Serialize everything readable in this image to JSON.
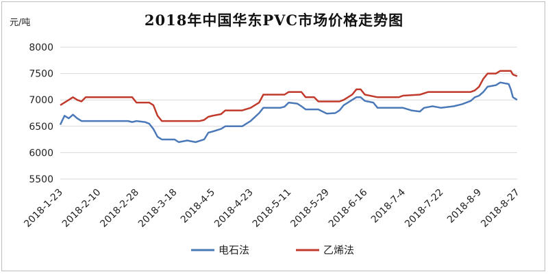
{
  "chart_data": {
    "type": "line",
    "title": "2018年中国华东PVC市场价格走势图",
    "unit": "元/吨",
    "ylim": [
      5500,
      8000
    ],
    "yticks": [
      5500,
      6000,
      6500,
      7000,
      7500,
      8000
    ],
    "xlim": [
      "2018-1-23",
      "2018-8-27"
    ],
    "xticks": [
      "2018-1-23",
      "2018-2-10",
      "2018-2-28",
      "2018-3-18",
      "2018-4-5",
      "2018-4-23",
      "2018-5-11",
      "2018-5-29",
      "2018-6-16",
      "2018-7-4",
      "2018-7-22",
      "2018-8-9",
      "2018-8-27"
    ],
    "grid": "horizontal",
    "legend_position": "bottom",
    "series": [
      {
        "name": "电石法",
        "color": "#4a78b8",
        "points": [
          [
            "2018-1-23",
            6530
          ],
          [
            "2018-1-25",
            6700
          ],
          [
            "2018-1-27",
            6650
          ],
          [
            "2018-1-29",
            6720
          ],
          [
            "2018-1-31",
            6650
          ],
          [
            "2018-2-2",
            6600
          ],
          [
            "2018-2-10",
            6600
          ],
          [
            "2018-2-18",
            6600
          ],
          [
            "2018-2-24",
            6600
          ],
          [
            "2018-2-26",
            6580
          ],
          [
            "2018-2-28",
            6600
          ],
          [
            "2018-3-4",
            6580
          ],
          [
            "2018-3-6",
            6550
          ],
          [
            "2018-3-8",
            6450
          ],
          [
            "2018-3-10",
            6300
          ],
          [
            "2018-3-12",
            6250
          ],
          [
            "2018-3-18",
            6250
          ],
          [
            "2018-3-20",
            6200
          ],
          [
            "2018-3-24",
            6230
          ],
          [
            "2018-3-28",
            6200
          ],
          [
            "2018-4-1",
            6250
          ],
          [
            "2018-4-3",
            6380
          ],
          [
            "2018-4-5",
            6400
          ],
          [
            "2018-4-9",
            6450
          ],
          [
            "2018-4-11",
            6500
          ],
          [
            "2018-4-19",
            6500
          ],
          [
            "2018-4-21",
            6550
          ],
          [
            "2018-4-23",
            6600
          ],
          [
            "2018-4-27",
            6750
          ],
          [
            "2018-4-29",
            6850
          ],
          [
            "2018-5-7",
            6850
          ],
          [
            "2018-5-9",
            6870
          ],
          [
            "2018-5-11",
            6950
          ],
          [
            "2018-5-15",
            6930
          ],
          [
            "2018-5-17",
            6880
          ],
          [
            "2018-5-19",
            6820
          ],
          [
            "2018-5-25",
            6820
          ],
          [
            "2018-5-27",
            6780
          ],
          [
            "2018-5-29",
            6740
          ],
          [
            "2018-6-2",
            6750
          ],
          [
            "2018-6-4",
            6800
          ],
          [
            "2018-6-6",
            6900
          ],
          [
            "2018-6-8",
            6950
          ],
          [
            "2018-6-10",
            7000
          ],
          [
            "2018-6-12",
            7050
          ],
          [
            "2018-6-14",
            7050
          ],
          [
            "2018-6-16",
            6980
          ],
          [
            "2018-6-20",
            6950
          ],
          [
            "2018-6-22",
            6850
          ],
          [
            "2018-6-26",
            6850
          ],
          [
            "2018-7-4",
            6850
          ],
          [
            "2018-7-8",
            6800
          ],
          [
            "2018-7-12",
            6780
          ],
          [
            "2018-7-14",
            6850
          ],
          [
            "2018-7-18",
            6880
          ],
          [
            "2018-7-22",
            6850
          ],
          [
            "2018-7-28",
            6880
          ],
          [
            "2018-8-1",
            6920
          ],
          [
            "2018-8-5",
            6980
          ],
          [
            "2018-8-7",
            7050
          ],
          [
            "2018-8-9",
            7080
          ],
          [
            "2018-8-11",
            7150
          ],
          [
            "2018-8-13",
            7250
          ],
          [
            "2018-8-17",
            7280
          ],
          [
            "2018-8-19",
            7330
          ],
          [
            "2018-8-23",
            7300
          ],
          [
            "2018-8-24",
            7200
          ],
          [
            "2018-8-25",
            7050
          ],
          [
            "2018-8-27",
            7000
          ]
        ]
      },
      {
        "name": "乙烯法",
        "color": "#c0392b",
        "points": [
          [
            "2018-1-23",
            6900
          ],
          [
            "2018-1-25",
            6950
          ],
          [
            "2018-1-27",
            7000
          ],
          [
            "2018-1-29",
            7050
          ],
          [
            "2018-1-31",
            7000
          ],
          [
            "2018-2-2",
            6970
          ],
          [
            "2018-2-4",
            7050
          ],
          [
            "2018-2-26",
            7050
          ],
          [
            "2018-2-28",
            6950
          ],
          [
            "2018-3-6",
            6950
          ],
          [
            "2018-3-8",
            6900
          ],
          [
            "2018-3-10",
            6700
          ],
          [
            "2018-3-12",
            6600
          ],
          [
            "2018-3-30",
            6600
          ],
          [
            "2018-4-1",
            6620
          ],
          [
            "2018-4-3",
            6680
          ],
          [
            "2018-4-5",
            6700
          ],
          [
            "2018-4-9",
            6730
          ],
          [
            "2018-4-11",
            6800
          ],
          [
            "2018-4-19",
            6800
          ],
          [
            "2018-4-23",
            6850
          ],
          [
            "2018-4-27",
            6950
          ],
          [
            "2018-4-29",
            7100
          ],
          [
            "2018-5-9",
            7100
          ],
          [
            "2018-5-11",
            7150
          ],
          [
            "2018-5-17",
            7150
          ],
          [
            "2018-5-19",
            7050
          ],
          [
            "2018-5-23",
            7050
          ],
          [
            "2018-5-25",
            6970
          ],
          [
            "2018-6-4",
            6970
          ],
          [
            "2018-6-6",
            7000
          ],
          [
            "2018-6-8",
            7050
          ],
          [
            "2018-6-10",
            7100
          ],
          [
            "2018-6-12",
            7200
          ],
          [
            "2018-6-14",
            7200
          ],
          [
            "2018-6-16",
            7100
          ],
          [
            "2018-6-22",
            7050
          ],
          [
            "2018-7-2",
            7050
          ],
          [
            "2018-7-4",
            7080
          ],
          [
            "2018-7-12",
            7100
          ],
          [
            "2018-7-16",
            7150
          ],
          [
            "2018-8-5",
            7150
          ],
          [
            "2018-8-7",
            7180
          ],
          [
            "2018-8-9",
            7250
          ],
          [
            "2018-8-11",
            7400
          ],
          [
            "2018-8-13",
            7500
          ],
          [
            "2018-8-17",
            7500
          ],
          [
            "2018-8-19",
            7550
          ],
          [
            "2018-8-24",
            7550
          ],
          [
            "2018-8-25",
            7480
          ],
          [
            "2018-8-27",
            7450
          ]
        ]
      }
    ]
  }
}
